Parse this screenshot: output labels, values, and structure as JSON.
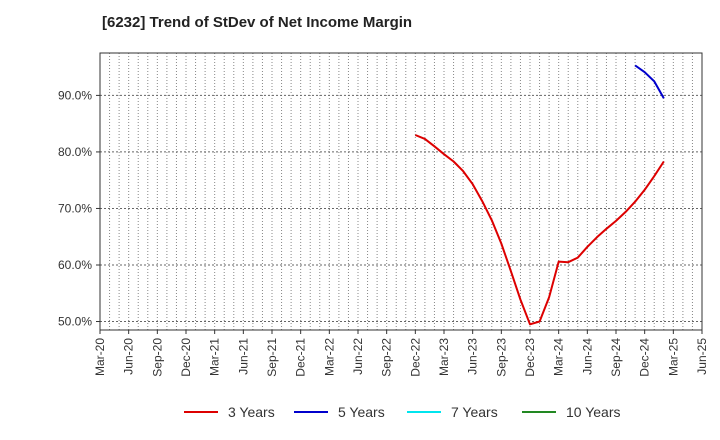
{
  "chart_data": {
    "type": "line",
    "title": "[6232]  Trend of StDev of Net Income Margin",
    "xlabel": "",
    "ylabel": "",
    "ylim": [
      48.5,
      97.5
    ],
    "y_ticks": [
      50.0,
      60.0,
      70.0,
      80.0,
      90.0
    ],
    "y_tick_labels": [
      "50.0%",
      "60.0%",
      "70.0%",
      "80.0%",
      "90.0%"
    ],
    "x_tick_labels": [
      "Mar-20",
      "Jun-20",
      "Sep-20",
      "Dec-20",
      "Mar-21",
      "Jun-21",
      "Sep-21",
      "Dec-21",
      "Mar-22",
      "Jun-22",
      "Sep-22",
      "Dec-22",
      "Mar-23",
      "Jun-23",
      "Sep-23",
      "Dec-23",
      "Mar-24",
      "Jun-24",
      "Sep-24",
      "Dec-24",
      "Mar-25",
      "Jun-25"
    ],
    "grid": true,
    "series": [
      {
        "name": "3 Years",
        "color": "#dd0000",
        "points": [
          [
            33,
            83.0
          ],
          [
            34,
            82.3
          ],
          [
            35,
            81.0
          ],
          [
            36,
            79.6
          ],
          [
            37,
            78.3
          ],
          [
            38,
            76.6
          ],
          [
            39,
            74.3
          ],
          [
            40,
            71.3
          ],
          [
            41,
            67.9
          ],
          [
            42,
            63.8
          ],
          [
            43,
            58.9
          ],
          [
            44,
            53.9
          ],
          [
            45,
            49.5
          ],
          [
            46,
            50.0
          ],
          [
            47,
            54.3
          ],
          [
            48,
            60.6
          ],
          [
            49,
            60.5
          ],
          [
            50,
            61.3
          ],
          [
            51,
            63.2
          ],
          [
            52,
            64.9
          ],
          [
            53,
            66.4
          ],
          [
            54,
            67.8
          ],
          [
            55,
            69.4
          ],
          [
            56,
            71.2
          ],
          [
            57,
            73.3
          ],
          [
            58,
            75.7
          ],
          [
            59,
            78.3
          ]
        ]
      },
      {
        "name": "5 Years",
        "color": "#0000cc",
        "points": [
          [
            56,
            95.3
          ],
          [
            57,
            94.1
          ],
          [
            58,
            92.5
          ],
          [
            59,
            89.5
          ]
        ]
      },
      {
        "name": "7 Years",
        "color": "#00e5ee",
        "points": []
      },
      {
        "name": "10 Years",
        "color": "#228822",
        "points": []
      }
    ]
  },
  "legend": {
    "items": [
      {
        "label": "3 Years",
        "color": "#dd0000"
      },
      {
        "label": "5 Years",
        "color": "#0000cc"
      },
      {
        "label": "7 Years",
        "color": "#00e5ee"
      },
      {
        "label": "10 Years",
        "color": "#228822"
      }
    ]
  }
}
